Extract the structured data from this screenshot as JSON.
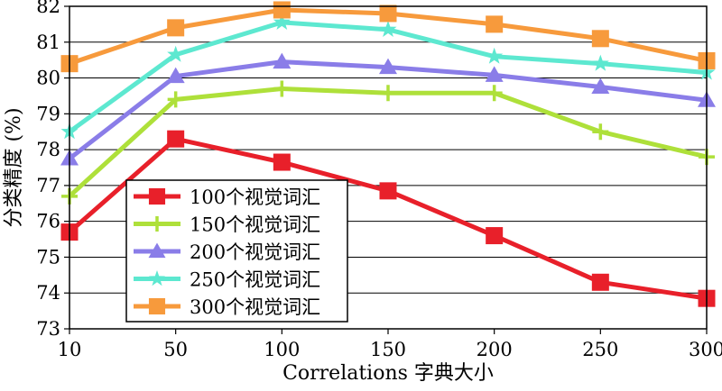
{
  "chart_data": {
    "type": "line",
    "title": "",
    "xlabel": "Correlations 字典大小",
    "ylabel": "分类精度 (%)",
    "x": [
      10,
      50,
      100,
      150,
      200,
      250,
      300
    ],
    "x_tick_labels": [
      "10",
      "50",
      "100",
      "150",
      "200",
      "250",
      "300"
    ],
    "ylim": [
      73,
      82
    ],
    "y_ticks": [
      73,
      74,
      75,
      76,
      77,
      78,
      79,
      80,
      81,
      82
    ],
    "y_tick_labels": [
      "73",
      "74",
      "75",
      "76",
      "77",
      "78",
      "79",
      "80",
      "81",
      "82"
    ],
    "grid": "horizontal",
    "legend_position": "center-left",
    "series": [
      {
        "name": "100个视觉词汇",
        "color": "#e8202a",
        "marker": "square",
        "values": [
          75.7,
          78.3,
          77.65,
          76.85,
          75.6,
          74.3,
          73.85
        ]
      },
      {
        "name": "150个视觉词汇",
        "color": "#aee03a",
        "marker": "plus",
        "values": [
          76.7,
          79.4,
          79.7,
          79.58,
          79.58,
          78.5,
          77.8
        ]
      },
      {
        "name": "200个视觉词汇",
        "color": "#8a7de8",
        "marker": "triangle",
        "values": [
          77.75,
          80.05,
          80.45,
          80.3,
          80.08,
          79.75,
          79.38
        ]
      },
      {
        "name": "250个视觉词汇",
        "color": "#5de8d0",
        "marker": "star",
        "values": [
          78.5,
          80.65,
          81.55,
          81.35,
          80.6,
          80.4,
          80.15
        ]
      },
      {
        "name": "300个视觉词汇",
        "color": "#f79a3c",
        "marker": "square",
        "values": [
          80.4,
          81.4,
          81.9,
          81.8,
          81.5,
          81.1,
          80.48
        ]
      }
    ]
  }
}
